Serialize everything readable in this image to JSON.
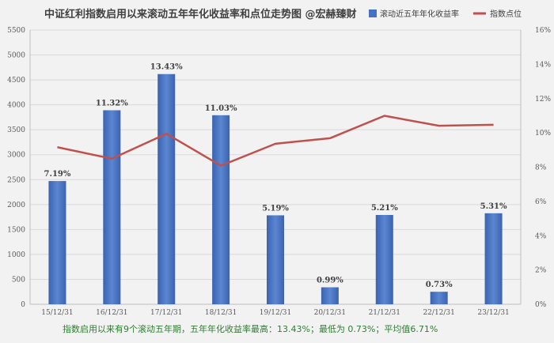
{
  "chart_data": {
    "type": "bar+line",
    "title": "中证红利指数启用以来滚动五年年化收益率和点位走势图 @宏赫臻财",
    "categories": [
      "15/12/31",
      "16/12/31",
      "17/12/31",
      "18/12/31",
      "19/12/31",
      "20/12/31",
      "21/12/31",
      "22/12/31",
      "23/12/31"
    ],
    "series": [
      {
        "name": "滚动近五年年化收益率",
        "type": "bar",
        "axis": "right",
        "color": "#4472c4",
        "values": [
          7.19,
          11.32,
          13.43,
          11.03,
          5.19,
          0.99,
          5.21,
          0.73,
          5.31
        ],
        "labels": [
          "7.19%",
          "11.32%",
          "13.43%",
          "11.03%",
          "5.19%",
          "0.99%",
          "5.21%",
          "0.73%",
          "5.31%"
        ]
      },
      {
        "name": "指数点位",
        "type": "line",
        "axis": "left",
        "color": "#c0504d",
        "values": [
          3150,
          2920,
          3420,
          2780,
          3220,
          3330,
          3780,
          3580,
          3600
        ]
      }
    ],
    "left_axis": {
      "min": 0,
      "max": 5500,
      "step": 500
    },
    "right_axis": {
      "min": 0,
      "max": 16,
      "step": 2,
      "format": "percent"
    },
    "legend_position": "top-right",
    "grid": true
  },
  "footer_text": "指数启用以来有9个滚动五年期，五年年化收益率最高：13.43%；最低为 0.73%；平均值6.71%"
}
